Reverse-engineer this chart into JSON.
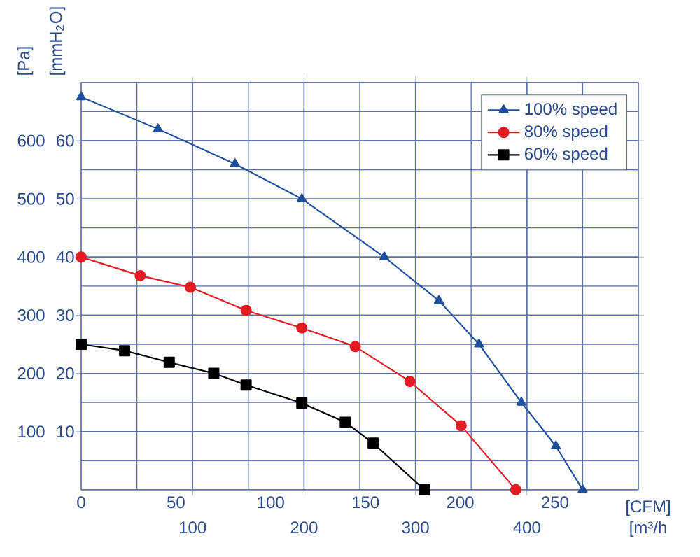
{
  "chart_data": {
    "type": "line",
    "xlabel": "[m³/h",
    "x2label": "[CFM]",
    "ylabel": "[Pa]",
    "y2label": "[mmH$_{2}$O]",
    "xlim": [
      0,
      500
    ],
    "xticks": [
      100,
      200,
      300,
      400
    ],
    "x2lim": [
      0,
      294
    ],
    "x2ticks": [
      0,
      50,
      100,
      150,
      200,
      250
    ],
    "ylim": [
      0,
      700
    ],
    "yticks": [
      100,
      200,
      300,
      400,
      500,
      600
    ],
    "y2lim": [
      0,
      70
    ],
    "y2ticks": [
      10,
      20,
      30,
      40,
      50,
      60
    ],
    "grid": true,
    "legend": "top right",
    "line_style": "solid",
    "series": [
      {
        "name": "100% speed",
        "color": "#1f4e9a",
        "marker": "triangle",
        "x": [
          0,
          69,
          138,
          198,
          272,
          321,
          357,
          395,
          426,
          450
        ],
        "values": [
          675,
          620,
          560,
          500,
          400,
          325,
          250,
          150,
          75,
          0
        ]
      },
      {
        "name": "80% speed",
        "color": "#e31b23",
        "marker": "circle",
        "x": [
          0,
          53,
          98,
          148,
          198,
          246,
          295,
          341,
          390
        ],
        "values": [
          400,
          368,
          348,
          308,
          278,
          246,
          186,
          110,
          0
        ]
      },
      {
        "name": "60% speed",
        "color": "#000000",
        "marker": "square",
        "x": [
          0,
          39,
          79,
          119,
          148,
          198,
          237,
          262,
          308
        ],
        "values": [
          250,
          239,
          219,
          200,
          180,
          149,
          116,
          80,
          0
        ]
      }
    ]
  }
}
